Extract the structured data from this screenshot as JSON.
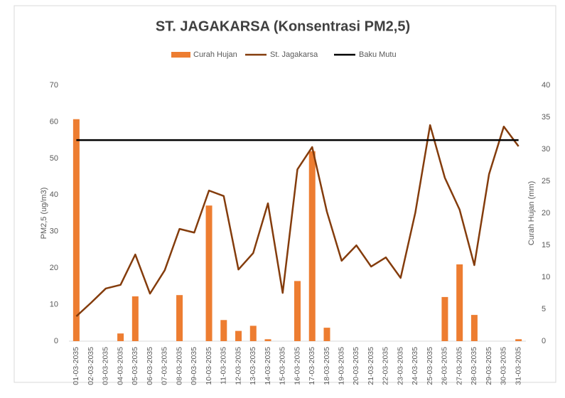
{
  "chart_data": {
    "type": "combo",
    "title": "ST. JAGAKARSA (Konsentrasi PM2,5)",
    "ylabel": "PM2,5 (ug/m3)",
    "y2label": "Curah Hujan (mm)",
    "categories": [
      "01-03-2035",
      "02-03-2035",
      "03-03-2035",
      "04-03-2035",
      "05-03-2035",
      "06-03-2035",
      "07-03-2035",
      "08-03-2035",
      "09-03-2035",
      "10-03-2035",
      "11-03-2035",
      "12-03-2035",
      "13-03-2035",
      "14-03-2035",
      "15-03-2035",
      "16-03-2035",
      "17-03-2035",
      "18-03-2035",
      "19-03-2035",
      "20-03-2035",
      "21-03-2035",
      "22-03-2035",
      "23-03-2035",
      "24-03-2035",
      "25-03-2035",
      "26-03-2035",
      "27-03-2035",
      "28-03-2035",
      "29-03-2035",
      "30-03-2035",
      "31-03-2035"
    ],
    "series": [
      {
        "name": "Curah Hujan",
        "type": "bar",
        "axis": "y2",
        "color": "#ed7d31",
        "values": [
          34.7,
          0,
          0,
          1.2,
          7,
          0,
          0,
          7.2,
          0,
          21.2,
          3.3,
          1.6,
          2.4,
          0.3,
          0,
          9.4,
          29.7,
          2.1,
          0,
          0,
          0,
          0,
          0,
          0,
          0,
          6.9,
          12,
          4.1,
          0,
          0,
          0.3
        ]
      },
      {
        "name": "St. Jagakarsa",
        "type": "line",
        "axis": "y",
        "color": "#843c0c",
        "values": [
          6.8,
          10.5,
          14.4,
          15.4,
          23.7,
          13,
          19.4,
          30.7,
          29.7,
          41.2,
          39.7,
          19.6,
          24.1,
          37.7,
          13.2,
          47,
          53.1,
          35.4,
          22,
          26.2,
          20.4,
          22.9,
          17.3,
          35.2,
          59.1,
          44.7,
          36,
          20.8,
          45.7,
          58.7,
          53.3
        ]
      },
      {
        "name": "Baku Mutu",
        "type": "line",
        "axis": "y",
        "color": "#000000",
        "values": [
          55,
          55,
          55,
          55,
          55,
          55,
          55,
          55,
          55,
          55,
          55,
          55,
          55,
          55,
          55,
          55,
          55,
          55,
          55,
          55,
          55,
          55,
          55,
          55,
          55,
          55,
          55,
          55,
          55,
          55,
          55
        ]
      }
    ],
    "ylim": [
      0,
      70
    ],
    "yticks": [
      0,
      10,
      20,
      30,
      40,
      50,
      60,
      70
    ],
    "y2lim": [
      0,
      40
    ],
    "y2ticks": [
      0,
      5,
      10,
      15,
      20,
      25,
      30,
      35,
      40
    ],
    "legend": "top"
  }
}
